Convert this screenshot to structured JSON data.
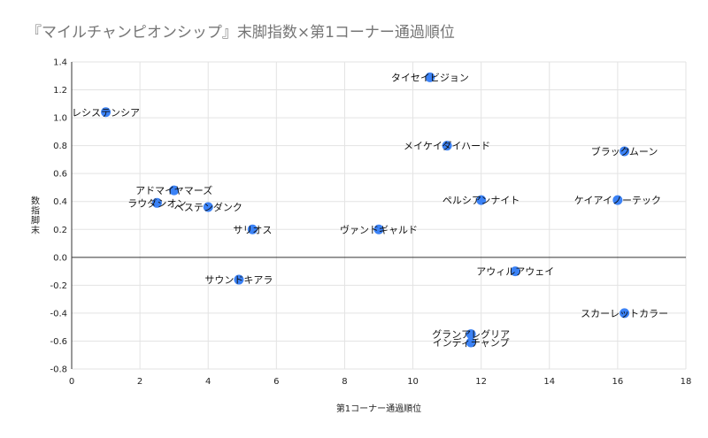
{
  "chart_data": {
    "type": "scatter",
    "title": "『マイルチャンピオンシップ』末脚指数×第1コーナー通過順位",
    "xlabel": "第1コーナー通過順位",
    "ylabel": "数指脚末",
    "xlim": [
      0,
      18
    ],
    "ylim": [
      -0.8,
      1.4
    ],
    "x_ticks": [
      "0",
      "2",
      "4",
      "6",
      "8",
      "10",
      "12",
      "14",
      "16",
      "18"
    ],
    "y_ticks": [
      "-0.8",
      "-0.6",
      "-0.4",
      "-0.2",
      "0.0",
      "0.2",
      "0.4",
      "0.6",
      "0.8",
      "1.0",
      "1.2",
      "1.4"
    ],
    "grid": true,
    "marker_color": "#3b82f6",
    "points": [
      {
        "label": "レシステンシア",
        "x": 1,
        "y": 1.04
      },
      {
        "label": "アドマイヤマーズ",
        "x": 3,
        "y": 0.48
      },
      {
        "label": "ラウダシオン",
        "x": 2.5,
        "y": 0.39
      },
      {
        "label": "ベステンダンク",
        "x": 4,
        "y": 0.36
      },
      {
        "label": "サリオス",
        "x": 5.3,
        "y": 0.2
      },
      {
        "label": "ヴァンドギャルド",
        "x": 9,
        "y": 0.2
      },
      {
        "label": "タイセイビジョン",
        "x": 10.5,
        "y": 1.29
      },
      {
        "label": "メイケイダイハード",
        "x": 11,
        "y": 0.8
      },
      {
        "label": "ペルシアンナイト",
        "x": 12,
        "y": 0.41
      },
      {
        "label": "ブラックムーン",
        "x": 16.2,
        "y": 0.76
      },
      {
        "label": "ケイアイノーテック",
        "x": 16,
        "y": 0.41
      },
      {
        "label": "サウンドキアラ",
        "x": 4.9,
        "y": -0.16
      },
      {
        "label": "アウィルアウェイ",
        "x": 13,
        "y": -0.1
      },
      {
        "label": "スカーレットカラー",
        "x": 16.2,
        "y": -0.4
      },
      {
        "label": "グランアレグリア",
        "x": 11.7,
        "y": -0.55
      },
      {
        "label": "インディチャンプ",
        "x": 11.7,
        "y": -0.61
      }
    ]
  }
}
